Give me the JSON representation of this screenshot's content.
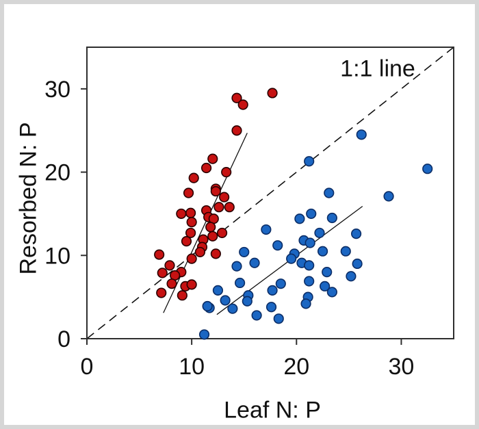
{
  "figure": {
    "background": "#ffffff",
    "border_color": "#d6d6d6",
    "text_color": "#111111",
    "frame_color": "#2e2e2e"
  },
  "chart_data": {
    "type": "scatter",
    "title": "",
    "xlabel": "Leaf N: P",
    "ylabel": "Resorbed N: P",
    "annotation": "1:1 line",
    "xlim": [
      0,
      35
    ],
    "ylim": [
      0,
      35
    ],
    "xticks": [
      0,
      10,
      20,
      30
    ],
    "yticks": [
      0,
      10,
      20,
      30
    ],
    "grid": false,
    "legend": "none",
    "series": [
      {
        "name": "red-group",
        "marker": "circle",
        "fill": "#C61212",
        "stroke": "#2A0000",
        "points": [
          [
            14.3,
            28.9
          ],
          [
            14.9,
            28.1
          ],
          [
            17.7,
            29.5
          ],
          [
            14.3,
            25.0
          ],
          [
            12.0,
            21.6
          ],
          [
            11.4,
            20.5
          ],
          [
            10.2,
            19.3
          ],
          [
            13.3,
            20.0
          ],
          [
            12.3,
            18.0
          ],
          [
            9.7,
            17.5
          ],
          [
            12.3,
            17.7
          ],
          [
            13.1,
            17.0
          ],
          [
            12.6,
            15.8
          ],
          [
            13.6,
            15.8
          ],
          [
            9.0,
            15.0
          ],
          [
            9.9,
            15.1
          ],
          [
            11.4,
            15.4
          ],
          [
            11.6,
            14.6
          ],
          [
            12.1,
            14.4
          ],
          [
            10.0,
            14.0
          ],
          [
            9.9,
            12.7
          ],
          [
            11.8,
            13.4
          ],
          [
            12.0,
            12.3
          ],
          [
            11.1,
            11.9
          ],
          [
            9.5,
            11.7
          ],
          [
            12.9,
            12.7
          ],
          [
            11.0,
            11.0
          ],
          [
            10.8,
            10.4
          ],
          [
            10.0,
            9.6
          ],
          [
            12.3,
            10.2
          ],
          [
            6.9,
            10.1
          ],
          [
            7.9,
            8.8
          ],
          [
            7.2,
            7.9
          ],
          [
            9.0,
            8.0
          ],
          [
            8.4,
            7.6
          ],
          [
            8.1,
            6.6
          ],
          [
            9.4,
            6.3
          ],
          [
            10.0,
            6.5
          ],
          [
            7.1,
            5.5
          ],
          [
            9.1,
            5.2
          ]
        ]
      },
      {
        "name": "blue-group",
        "marker": "circle",
        "fill": "#1B66C2",
        "stroke": "#0B2D66",
        "points": [
          [
            26.2,
            24.5
          ],
          [
            21.2,
            21.3
          ],
          [
            32.5,
            20.4
          ],
          [
            28.8,
            17.1
          ],
          [
            23.1,
            17.5
          ],
          [
            17.1,
            13.1
          ],
          [
            15.0,
            10.4
          ],
          [
            14.3,
            8.7
          ],
          [
            16.0,
            9.1
          ],
          [
            14.6,
            6.7
          ],
          [
            12.5,
            5.8
          ],
          [
            13.2,
            4.6
          ],
          [
            11.7,
            3.7
          ],
          [
            13.9,
            3.6
          ],
          [
            15.4,
            5.2
          ],
          [
            15.3,
            4.5
          ],
          [
            16.2,
            2.8
          ],
          [
            11.2,
            0.5
          ],
          [
            21.4,
            15.0
          ],
          [
            20.3,
            14.4
          ],
          [
            23.4,
            14.5
          ],
          [
            18.2,
            11.2
          ],
          [
            22.2,
            12.7
          ],
          [
            20.7,
            11.8
          ],
          [
            21.3,
            11.5
          ],
          [
            19.8,
            10.2
          ],
          [
            19.5,
            9.6
          ],
          [
            20.5,
            9.1
          ],
          [
            21.2,
            8.8
          ],
          [
            22.5,
            10.5
          ],
          [
            24.7,
            10.5
          ],
          [
            25.7,
            12.6
          ],
          [
            22.9,
            8.0
          ],
          [
            25.2,
            7.5
          ],
          [
            25.8,
            9.0
          ],
          [
            18.5,
            6.6
          ],
          [
            17.7,
            5.8
          ],
          [
            21.2,
            6.9
          ],
          [
            22.7,
            6.3
          ],
          [
            23.4,
            5.6
          ],
          [
            17.6,
            3.8
          ],
          [
            21.1,
            5.0
          ],
          [
            20.9,
            4.2
          ],
          [
            18.3,
            2.4
          ],
          [
            11.5,
            3.9
          ]
        ]
      }
    ],
    "lines": [
      {
        "name": "one-to-one-line",
        "style": "dashed",
        "from": [
          0,
          0
        ],
        "to": [
          35,
          35
        ]
      },
      {
        "name": "red-regression-line",
        "style": "solid",
        "from": [
          7.3,
          3.1
        ],
        "to": [
          15.3,
          24.7
        ]
      },
      {
        "name": "blue-regression-line",
        "style": "solid",
        "from": [
          12.4,
          2.9
        ],
        "to": [
          26.3,
          15.9
        ]
      }
    ]
  }
}
